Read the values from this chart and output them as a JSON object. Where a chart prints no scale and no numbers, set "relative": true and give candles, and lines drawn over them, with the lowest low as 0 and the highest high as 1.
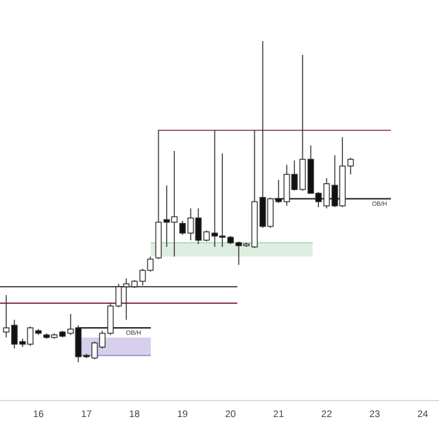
{
  "chart_data": {
    "type": "candlestick",
    "relative": true,
    "xlim": [
      15.2,
      24.34
    ],
    "xticks": [
      16,
      17,
      18,
      19,
      20,
      21,
      22,
      23,
      24
    ],
    "tick_labels": "x",
    "grid": false,
    "x": [
      15.33,
      15.5,
      15.67,
      15.83,
      16,
      16.17,
      16.33,
      16.5,
      16.67,
      16.83,
      17,
      17.17,
      17.33,
      17.5,
      17.67,
      17.83,
      18,
      18.17,
      18.33,
      18.5,
      18.67,
      18.83,
      19,
      19.17,
      19.33,
      19.5,
      19.67,
      19.83,
      20,
      20.17,
      20.33,
      20.5,
      20.67,
      20.83,
      21,
      21.17,
      21.33,
      21.5,
      21.67,
      21.83,
      22,
      22.17,
      22.33,
      22.5
    ],
    "ohlc": [
      [
        0.094,
        0.209,
        0.077,
        0.107
      ],
      [
        0.115,
        0.132,
        0.043,
        0.056
      ],
      [
        0.064,
        0.073,
        0.047,
        0.056
      ],
      [
        0.056,
        0.111,
        0.051,
        0.107
      ],
      [
        0.098,
        0.103,
        0.085,
        0.09
      ],
      [
        0.085,
        0.09,
        0.073,
        0.077
      ],
      [
        0.077,
        0.09,
        0.073,
        0.085
      ],
      [
        0.094,
        0.098,
        0.077,
        0.081
      ],
      [
        0.09,
        0.15,
        0.085,
        0.103
      ],
      [
        0.107,
        0.115,
        0,
        0.017
      ],
      [
        0.021,
        0.026,
        0.013,
        0.017
      ],
      [
        0.013,
        0.064,
        0.009,
        0.06
      ],
      [
        0.047,
        0.098,
        0.043,
        0.09
      ],
      [
        0.09,
        0.184,
        0.085,
        0.175
      ],
      [
        0.175,
        0.244,
        0.171,
        0.235
      ],
      [
        0.235,
        0.261,
        0.132,
        0.244
      ],
      [
        0.235,
        0.256,
        0.231,
        0.252
      ],
      [
        0.252,
        0.291,
        0.239,
        0.286
      ],
      [
        0.286,
        0.329,
        0.282,
        0.321
      ],
      [
        0.325,
        0.722,
        0.321,
        0.436
      ],
      [
        0.444,
        0.551,
        0.359,
        0.436
      ],
      [
        0.436,
        0.658,
        0.329,
        0.453
      ],
      [
        0.432,
        0.44,
        0.397,
        0.402
      ],
      [
        0.402,
        0.479,
        0.38,
        0.449
      ],
      [
        0.449,
        0.479,
        0.368,
        0.38
      ],
      [
        0.38,
        0.41,
        0.376,
        0.406
      ],
      [
        0.402,
        0.722,
        0.359,
        0.393
      ],
      [
        0.393,
        0.65,
        0.359,
        0.389
      ],
      [
        0.389,
        0.393,
        0.368,
        0.372
      ],
      [
        0.372,
        0.376,
        0.303,
        0.363
      ],
      [
        0.363,
        0.372,
        0.359,
        0.368
      ],
      [
        0.359,
        0.722,
        0.355,
        0.5
      ],
      [
        0.513,
        1,
        0.419,
        0.423
      ],
      [
        0.423,
        0.513,
        0.419,
        0.509
      ],
      [
        0.509,
        0.568,
        0.496,
        0.5
      ],
      [
        0.5,
        0.615,
        0.487,
        0.585
      ],
      [
        0.585,
        0.628,
        0.534,
        0.538
      ],
      [
        0.538,
        0.957,
        0.534,
        0.632
      ],
      [
        0.632,
        0.675,
        0.526,
        0.526
      ],
      [
        0.526,
        0.53,
        0.483,
        0.5
      ],
      [
        0.487,
        0.573,
        0.479,
        0.556
      ],
      [
        0.551,
        0.645,
        0.483,
        0.487
      ],
      [
        0.487,
        0.701,
        0.483,
        0.611
      ],
      [
        0.611,
        0.637,
        0.585,
        0.632
      ]
    ],
    "series": [
      {
        "type": "line",
        "color": "#b6dcbc",
        "x": [
          18.34,
          21.71
        ],
        "lower": [
          0.329,
          0.329
        ],
        "upper": [
          0.372,
          0.372
        ],
        "values": [
          0.372,
          0.372
        ]
      },
      {
        "type": "line",
        "color": "#a697d8",
        "x": [
          16.83,
          18.34
        ],
        "lower": [
          0.021,
          0.021
        ],
        "upper": [
          0.077,
          0.077
        ],
        "values": [
          0.021,
          0.021
        ]
      },
      {
        "type": "line",
        "color": "#a06a7a",
        "x": [
          18.49,
          23.34
        ],
        "values": [
          0.722,
          0.722
        ]
      },
      {
        "type": "line",
        "color": "#555555",
        "x": [
          15.2,
          20.14
        ],
        "values": [
          0.235,
          0.235
        ]
      },
      {
        "type": "line",
        "color": "#8b3a4e",
        "x": [
          15.2,
          20.14
        ],
        "values": [
          0.184,
          0.184
        ]
      },
      {
        "type": "line",
        "color": "#222222",
        "x": [
          16.83,
          18.34
        ],
        "values": [
          0.107,
          0.107
        ]
      },
      {
        "type": "line",
        "color": "#222222",
        "x": [
          20.91,
          23.34
        ],
        "values": [
          0.509,
          0.509
        ]
      }
    ],
    "annotations": [
      {
        "text": "OB/H",
        "x": 17.98,
        "y": 0.107
      },
      {
        "text": "OB/H",
        "x": 23.1,
        "y": 0.509
      }
    ]
  }
}
